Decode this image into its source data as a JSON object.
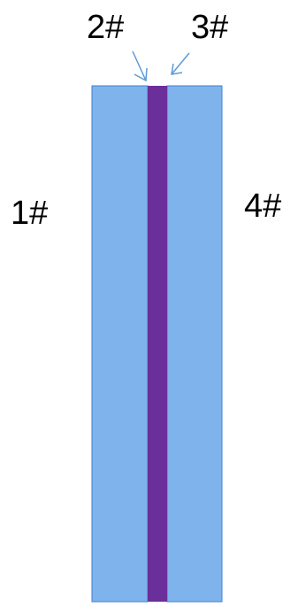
{
  "labels": {
    "region_1": "1#",
    "region_2": "2#",
    "region_3": "3#",
    "region_4": "4#"
  },
  "colors": {
    "outer_layer_fill": "#7fb3ec",
    "outer_layer_stroke": "#3f7fd0",
    "core_layer_fill": "#6a2f9a",
    "arrow_stroke": "#5b9bd5",
    "label_text": "#000000"
  }
}
